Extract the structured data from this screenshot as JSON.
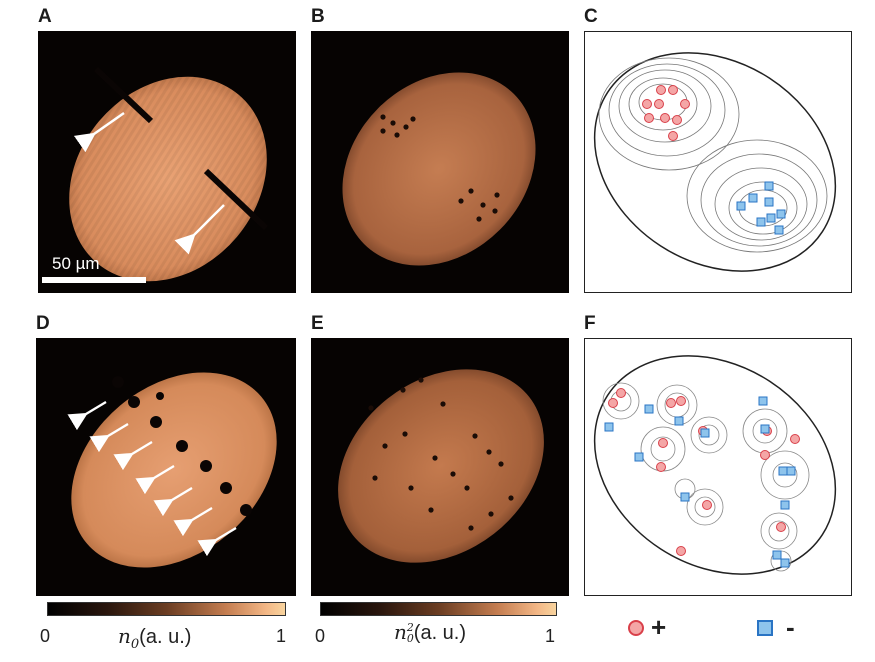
{
  "panels": {
    "A": "A",
    "B": "B",
    "C": "C",
    "D": "D",
    "E": "E",
    "F": "F"
  },
  "scale_bar": {
    "text": "50 µm"
  },
  "colorbars": [
    {
      "min": "0",
      "max": "1",
      "var": "n",
      "sub": "0",
      "sup": "",
      "unit": "(a. u.)"
    },
    {
      "min": "0",
      "max": "1",
      "var": "n",
      "sub": "0",
      "sup": "2",
      "unit": "(a. u.)"
    }
  ],
  "legend": {
    "positive": "+",
    "negative": "-"
  },
  "colors": {
    "positive_fill": "#f4a6a6",
    "positive_stroke": "#d9404a",
    "negative_fill": "#8ec4ec",
    "negative_stroke": "#2a74c4",
    "cloud": "#e59a68"
  }
}
